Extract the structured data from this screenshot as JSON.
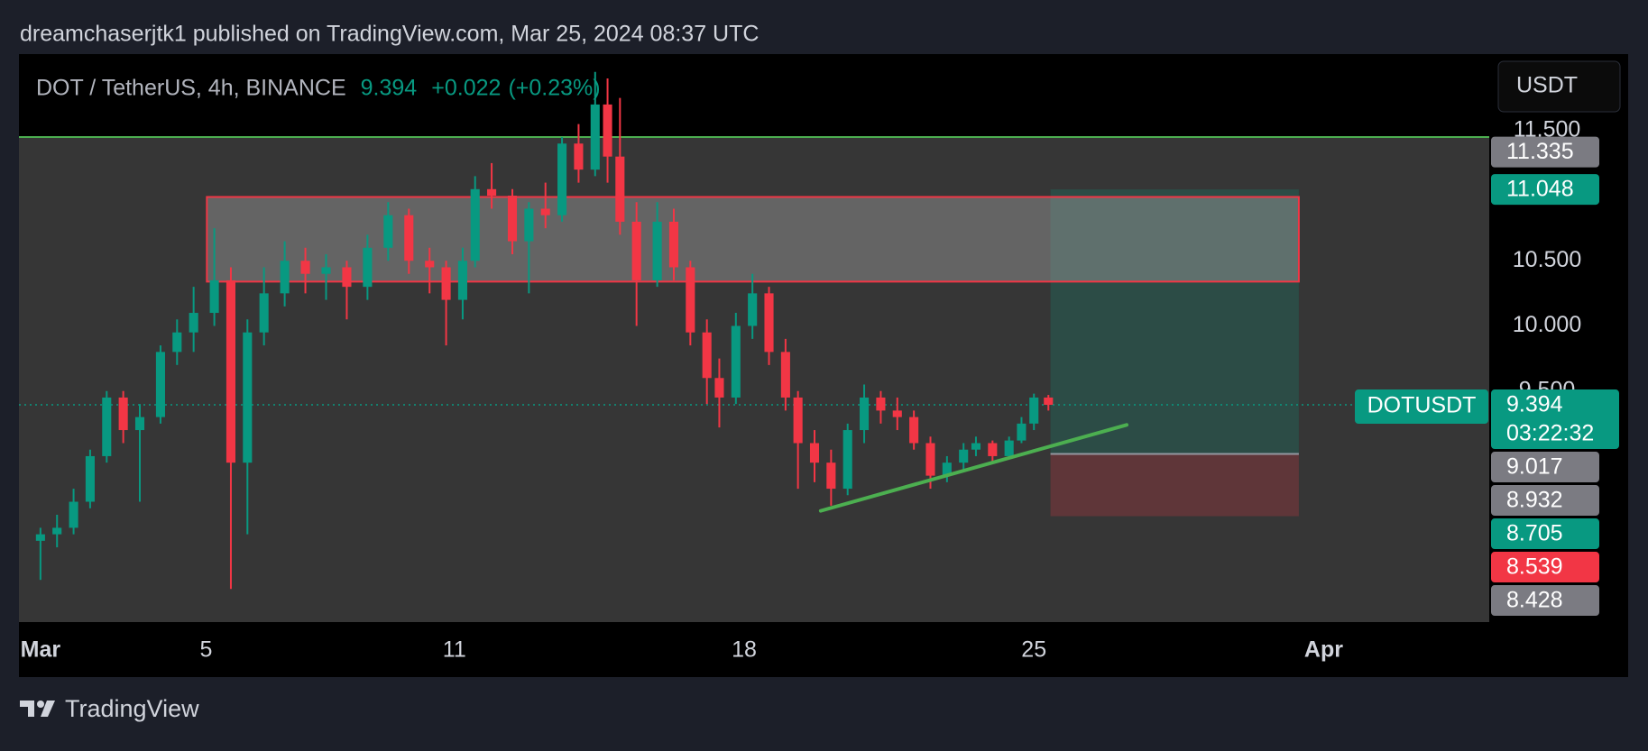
{
  "header": {
    "text": "dreamchaserjtk1 published on TradingView.com, Mar 25, 2024 08:37 UTC"
  },
  "chart_data": {
    "type": "candlestick",
    "symbol": "DOT / TetherUS, 4h, BINANCE",
    "last": 9.394,
    "change": "+0.022",
    "change_pct": "(+0.23%)",
    "currency": "USDT",
    "ticker": "DOTUSDT",
    "countdown": "03:22:32",
    "up_color": "#089981",
    "down_color": "#f23645",
    "xlim": [
      -0.52,
      35.0
    ],
    "ylim": [
      7.726,
      12.08
    ],
    "xticks": [
      {
        "value": 0,
        "label": "Mar"
      },
      {
        "value": 4,
        "label": "5"
      },
      {
        "value": 10,
        "label": "11"
      },
      {
        "value": 17,
        "label": "18"
      },
      {
        "value": 24,
        "label": "25"
      },
      {
        "value": 31,
        "label": "Apr"
      }
    ],
    "yticks": [
      {
        "value": 11.5,
        "label": "11.500"
      },
      {
        "value": 10.5,
        "label": "10.500"
      },
      {
        "value": 10,
        "label": "10.000"
      },
      {
        "value": 9.5,
        "label": "9.500"
      }
    ],
    "candles": {
      "x": [
        0,
        0.4,
        0.8,
        1.2,
        1.6,
        2.0,
        2.4,
        2.9,
        3.3,
        3.7,
        4.2,
        4.6,
        5.0,
        5.4,
        5.9,
        6.4,
        6.9,
        7.4,
        7.9,
        8.4,
        8.9,
        9.4,
        9.8,
        10.2,
        10.5,
        10.9,
        11.4,
        11.8,
        12.2,
        12.6,
        13.0,
        13.4,
        13.7,
        14.0,
        14.4,
        14.9,
        15.3,
        15.7,
        16.1,
        16.4,
        16.8,
        17.2,
        17.6,
        18.0,
        18.3,
        18.7,
        19.1,
        19.5,
        19.9,
        20.3,
        20.7,
        21.1,
        21.5,
        21.9,
        22.3,
        22.6,
        23.0,
        23.4,
        23.7,
        24.0,
        24.35
      ],
      "open": [
        8.35,
        8.4,
        8.45,
        8.65,
        9.0,
        9.45,
        9.2,
        9.3,
        9.8,
        9.95,
        10.1,
        10.35,
        8.95,
        9.95,
        10.25,
        10.5,
        10.4,
        10.45,
        10.3,
        10.6,
        10.85,
        10.5,
        10.45,
        10.2,
        10.5,
        11.05,
        11.0,
        10.65,
        10.9,
        10.85,
        11.4,
        11.2,
        11.7,
        11.3,
        10.8,
        10.35,
        10.8,
        10.45,
        9.95,
        9.6,
        9.45,
        10.0,
        10.25,
        9.8,
        9.45,
        9.1,
        8.95,
        8.75,
        9.2,
        9.45,
        9.35,
        9.3,
        9.1,
        8.85,
        8.95,
        9.05,
        9.1,
        9.0,
        9.12,
        9.25,
        9.45
      ],
      "high": [
        8.45,
        8.55,
        8.75,
        9.05,
        9.5,
        9.5,
        9.4,
        9.85,
        10.05,
        10.3,
        10.75,
        10.45,
        10.05,
        10.45,
        10.65,
        10.6,
        10.55,
        10.5,
        10.7,
        10.95,
        10.9,
        10.6,
        10.5,
        10.6,
        11.15,
        11.25,
        11.05,
        10.95,
        11.1,
        11.45,
        11.55,
        11.95,
        11.9,
        11.75,
        10.95,
        10.95,
        10.9,
        10.5,
        10.05,
        9.75,
        10.1,
        10.4,
        10.3,
        9.9,
        9.5,
        9.2,
        9.05,
        9.25,
        9.55,
        9.5,
        9.45,
        9.35,
        9.15,
        9.0,
        9.1,
        9.15,
        9.12,
        9.15,
        9.3,
        9.48,
        9.47
      ],
      "low": [
        8.05,
        8.3,
        8.4,
        8.6,
        8.95,
        9.1,
        8.65,
        9.25,
        9.7,
        9.8,
        10.0,
        7.98,
        8.4,
        9.85,
        10.15,
        10.25,
        10.2,
        10.05,
        10.2,
        10.5,
        10.4,
        10.25,
        9.85,
        10.05,
        10.45,
        10.9,
        10.55,
        10.25,
        10.75,
        10.8,
        11.1,
        11.15,
        11.1,
        10.7,
        10.0,
        10.3,
        10.35,
        9.85,
        9.4,
        9.22,
        9.4,
        9.9,
        9.7,
        9.35,
        8.75,
        8.8,
        8.62,
        8.7,
        9.1,
        9.25,
        9.2,
        9.05,
        8.75,
        8.8,
        8.9,
        9.0,
        8.95,
        8.98,
        9.1,
        9.2,
        9.35
      ],
      "close": [
        8.4,
        8.45,
        8.65,
        9.0,
        9.45,
        9.2,
        9.3,
        9.8,
        9.95,
        10.1,
        10.35,
        8.95,
        9.95,
        10.25,
        10.5,
        10.4,
        10.45,
        10.3,
        10.6,
        10.85,
        10.5,
        10.45,
        10.2,
        10.5,
        11.05,
        11.0,
        10.65,
        10.9,
        10.85,
        11.4,
        11.2,
        11.7,
        11.3,
        10.8,
        10.35,
        10.8,
        10.45,
        9.95,
        9.6,
        9.45,
        10.0,
        10.25,
        9.8,
        9.45,
        9.1,
        8.95,
        8.75,
        9.2,
        9.45,
        9.35,
        9.3,
        9.1,
        8.85,
        8.95,
        9.05,
        9.1,
        9.0,
        9.12,
        9.25,
        9.45,
        9.394
      ]
    },
    "hline": {
      "value": 11.45,
      "color": "#4caf50"
    },
    "supply_zone": {
      "x0": 4.02,
      "x1": 30.4,
      "top": 10.99,
      "bottom": 10.34
    },
    "position": {
      "x0": 24.4,
      "x1": 30.4,
      "target": 11.048,
      "entry": 9.017,
      "stop": 8.539
    },
    "trendline": {
      "x": [
        18.85,
        26.24
      ],
      "y": [
        8.58,
        9.24
      ],
      "color": "#4caf50"
    },
    "price_labels": [
      {
        "value": 11.335,
        "color": "#7b7b82"
      },
      {
        "value": 11.048,
        "color": "#089981"
      },
      {
        "value": 9.017,
        "color": "#7b7b82"
      },
      {
        "value": 8.932,
        "color": "#7b7b82"
      },
      {
        "value": 8.705,
        "color": "#089981"
      },
      {
        "value": 8.539,
        "color": "#f23645"
      },
      {
        "value": 8.428,
        "color": "#7b7b82"
      }
    ]
  },
  "footer": {
    "brand": "TradingView"
  }
}
